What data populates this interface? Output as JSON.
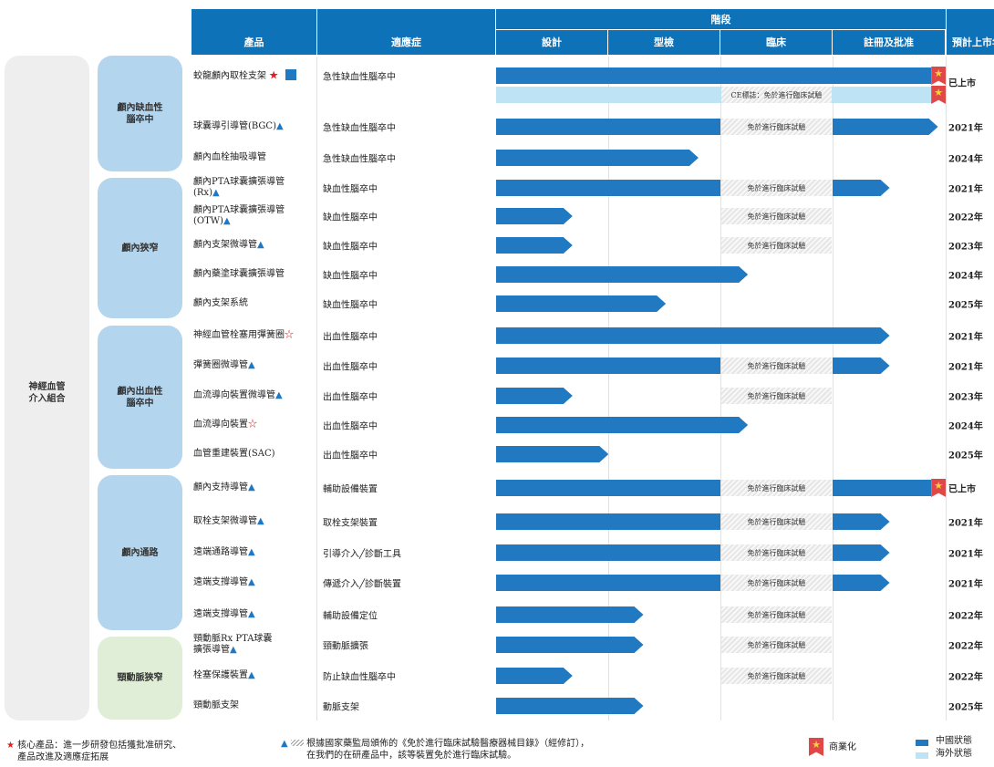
{
  "header": {
    "product": "產品",
    "indication": "適應症",
    "stage_group": "階段",
    "stages": [
      "設計",
      "型檢",
      "臨床",
      "註冊及批准"
    ],
    "launch": "預計上市年"
  },
  "portfolio": "神經血管\n介入組合",
  "groups": [
    {
      "label": "顱內缺血性\n腦卒中",
      "color": "#b3d5ee"
    },
    {
      "label": "顱內狹窄",
      "color": "#b3d5ee"
    },
    {
      "label": "顱內出血性\n腦卒中",
      "color": "#b3d5ee"
    },
    {
      "label": "顱內通路",
      "color": "#b3d5ee"
    },
    {
      "label": "頸動脈狹窄",
      "color": "#e0edd7"
    }
  ],
  "exempt_label": "免於進行臨床試驗",
  "ce_label": "CE標誌：免於進行臨床試驗",
  "rows": [
    {
      "product": "蛟龍顱內取栓支架",
      "marker": "star+square",
      "indication": "急性缺血性腦卒中",
      "progress": 3.87,
      "exempt": false,
      "commercialized": true,
      "overseas": {
        "progress": 3.87,
        "commercialized": true
      },
      "launch": "已上市"
    },
    {
      "product": "球囊導引導管(BGC)",
      "marker": "triangle",
      "indication": "急性缺血性腦卒中",
      "progress": 3.93,
      "exempt": true,
      "launch": "2021年"
    },
    {
      "product": "顱內血栓抽吸導管",
      "marker": "",
      "indication": "急性缺血性腦卒中",
      "progress": 1.8,
      "exempt": false,
      "launch": "2024年"
    },
    {
      "product": "顱內PTA球囊擴張導管\n(Rx)",
      "marker": "triangle",
      "indication": "缺血性腦卒中",
      "progress": 3.5,
      "exempt": true,
      "launch": "2021年"
    },
    {
      "product": "顱內PTA球囊擴張導管\n(OTW)",
      "marker": "triangle",
      "indication": "缺血性腦卒中",
      "progress": 0.68,
      "exempt": true,
      "launch": "2022年"
    },
    {
      "product": "顱內支架微導管",
      "marker": "triangle",
      "indication": "缺血性腦卒中",
      "progress": 0.68,
      "exempt": true,
      "launch": "2023年"
    },
    {
      "product": "顱內藥塗球囊擴張導管",
      "marker": "",
      "indication": "缺血性腦卒中",
      "progress": 2.24,
      "exempt": false,
      "launch": "2024年"
    },
    {
      "product": "顱內支架系統",
      "marker": "",
      "indication": "缺血性腦卒中",
      "progress": 1.51,
      "exempt": false,
      "launch": "2025年"
    },
    {
      "product": "神經血管栓塞用彈簧圈",
      "marker": "hollow-star",
      "indication": "出血性腦卒中",
      "progress": 3.5,
      "exempt": false,
      "launch": "2021年"
    },
    {
      "product": "彈簧圈微導管",
      "marker": "triangle",
      "indication": "出血性腦卒中",
      "progress": 3.5,
      "exempt": true,
      "launch": "2021年"
    },
    {
      "product": "血流導向裝置微導管",
      "marker": "triangle",
      "indication": "出血性腦卒中",
      "progress": 0.68,
      "exempt": true,
      "launch": "2023年"
    },
    {
      "product": "血流導向裝置",
      "marker": "hollow-star",
      "indication": "出血性腦卒中",
      "progress": 2.24,
      "exempt": false,
      "launch": "2024年"
    },
    {
      "product": "血管重建裝置(SAC)",
      "marker": "",
      "indication": "出血性腦卒中",
      "progress": 1.0,
      "exempt": false,
      "launch": "2025年"
    },
    {
      "product": "顱內支持導管",
      "marker": "triangle",
      "indication": "輔助設備裝置",
      "progress": 3.87,
      "exempt": true,
      "commercialized": true,
      "launch": "已上市"
    },
    {
      "product": "取栓支架微導管",
      "marker": "triangle",
      "indication": "取栓支架裝置",
      "progress": 3.5,
      "exempt": true,
      "launch": "2021年"
    },
    {
      "product": "遠端通路導管",
      "marker": "triangle",
      "indication": "引導介入╱診斷工具",
      "progress": 3.5,
      "exempt": true,
      "launch": "2021年"
    },
    {
      "product": "遠端支撐導管",
      "marker": "triangle",
      "indication": "傳遞介入╱診斷裝置",
      "progress": 3.5,
      "exempt": true,
      "launch": "2021年"
    },
    {
      "product": "遠端支撐導管",
      "marker": "triangle",
      "indication": "輔助設備定位",
      "progress": 1.31,
      "exempt": true,
      "launch": "2022年"
    },
    {
      "product": "頸動脈Rx PTA球囊\n擴張導管",
      "marker": "triangle",
      "indication": "頸動脈擴張",
      "progress": 1.31,
      "exempt": true,
      "launch": "2022年"
    },
    {
      "product": "栓塞保護裝置",
      "marker": "triangle",
      "indication": "防止缺血性腦卒中",
      "progress": 0.68,
      "exempt": true,
      "launch": "2022年"
    },
    {
      "product": "頸動脈支架",
      "marker": "",
      "indication": "動脈支架",
      "progress": 1.31,
      "exempt": false,
      "launch": "2025年"
    }
  ],
  "legend": {
    "core": "核心產品：進一步研發包括獲批准研究、\n產品改進及適應症拓展",
    "exempt_note": "根據國家藥監局頒佈的《免於進行臨床試驗醫療器械目錄》（經修訂），\n在我們的在研產品中，該等裝置免於進行臨床試驗。",
    "commercialized": "商業化",
    "china": "中國狀態",
    "overseas": "海外狀態"
  },
  "colors": {
    "china": "#2079c1",
    "overseas": "#bde3f4",
    "header": "#0e72b8"
  }
}
